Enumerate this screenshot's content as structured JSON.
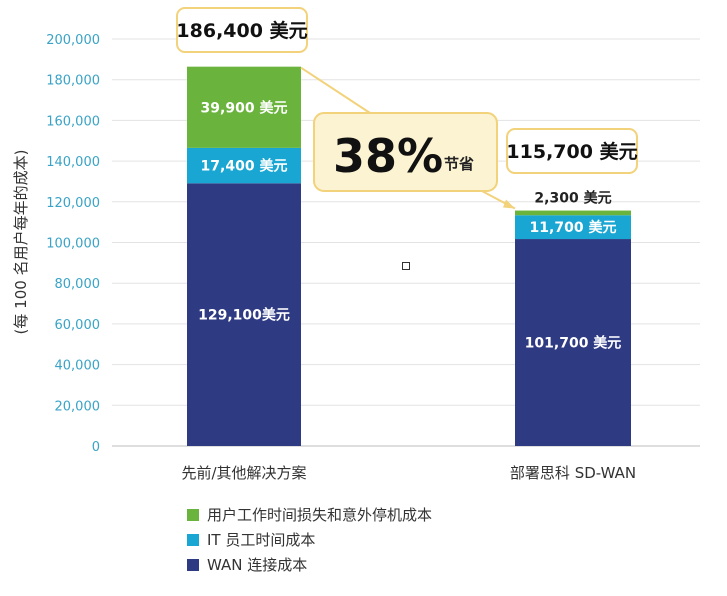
{
  "chart_data": {
    "type": "bar",
    "stacked": true,
    "categories": [
      "先前/其他解决方案",
      "部署思科 SD-WAN"
    ],
    "ylabel": "(每 100 名用户每年的成本)",
    "ylim": [
      0,
      200000
    ],
    "yticks": [
      "0",
      "20,000",
      "40,000",
      "60,000",
      "80,000",
      "100,000",
      "120,000",
      "140,000",
      "160,000",
      "180,000",
      "200,000"
    ],
    "tick_values": [
      0,
      20000,
      40000,
      60000,
      80000,
      100000,
      120000,
      140000,
      160000,
      180000,
      200000
    ],
    "series": [
      {
        "name": "WAN 连接成本",
        "color": "#2e3a82",
        "values": [
          129100,
          101700
        ],
        "labels": [
          "129,100美元",
          "101,700 美元"
        ],
        "label_color": "#ffffff"
      },
      {
        "name": "IT 员工时间成本",
        "color": "#1aa6d2",
        "values": [
          17400,
          11700
        ],
        "labels": [
          "17,400 美元",
          "11,700 美元"
        ],
        "label_color": "#ffffff"
      },
      {
        "name": "用户工作时间损失和意外停机成本",
        "color": "#6ab43d",
        "values": [
          39900,
          2300
        ],
        "labels": [
          "39,900 美元",
          "2,300 美元"
        ],
        "label_color": "#ffffff"
      }
    ],
    "totals": [
      "186,400 美元",
      "115,700 美元"
    ],
    "savings": {
      "value": "38%",
      "label": "节省"
    },
    "grid": true,
    "legend_position": "bottom-left"
  }
}
